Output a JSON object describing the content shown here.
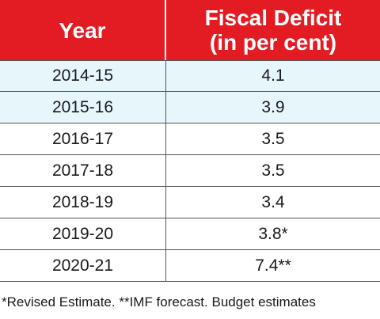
{
  "chart_data": {
    "type": "table",
    "columns": [
      "Year",
      "Fiscal Deficit",
      "(in per cent)"
    ],
    "rows": [
      {
        "year": "2014-15",
        "value": "4.1"
      },
      {
        "year": "2015-16",
        "value": "3.9"
      },
      {
        "year": "2016-17",
        "value": "3.5"
      },
      {
        "year": "2017-18",
        "value": "3.5"
      },
      {
        "year": "2018-19",
        "value": "3.4"
      },
      {
        "year": "2019-20",
        "value": "3.8*"
      },
      {
        "year": "2020-21",
        "value": "7.4**"
      }
    ],
    "footnote": "*Revised Estimate.  **IMF forecast. Budget estimates",
    "colors": {
      "header": "#e31b23",
      "shaded_row": "#e6f6fb"
    }
  }
}
